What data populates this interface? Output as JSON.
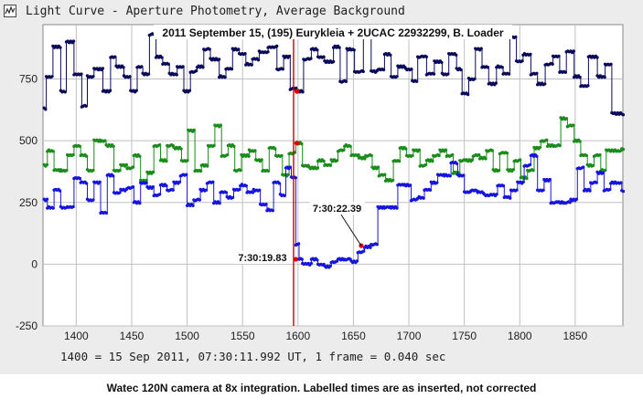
{
  "window": {
    "title": "Light Curve - Aperture Photometry, Average Background",
    "icon": "light-curve-app-icon"
  },
  "footer": {
    "frame_note": "1400 = 15 Sep 2011, 07:30:11.992 UT, 1 frame = 0.040 sec",
    "caption": "Watec 120N camera at 8x integration.   Labelled times are as inserted, not corrected"
  },
  "chart_data": {
    "type": "line",
    "title": "2011 September 15,  (195) Eurykleia + 2UCAC 22932299,  B. Loader",
    "xlabel": "",
    "ylabel": "",
    "xlim": [
      1370,
      1893
    ],
    "ylim": [
      -250,
      970
    ],
    "x_ticks": [
      1400,
      1450,
      1500,
      1550,
      1600,
      1650,
      1700,
      1750,
      1800,
      1850
    ],
    "y_ticks": [
      -250,
      0,
      250,
      500,
      750
    ],
    "grid": true,
    "legend": "none",
    "colors": {
      "background": "#ececec",
      "plot_background": "#ffffff",
      "grid": "#c0c0c0",
      "event_line": "#cc0000",
      "marker": "#dd0000"
    },
    "series": [
      {
        "color": "#0a0a5a",
        "steps": [
          [
            1371,
            630
          ],
          [
            1373,
            760
          ],
          [
            1379,
            880
          ],
          [
            1386,
            700
          ],
          [
            1391,
            900
          ],
          [
            1398,
            770
          ],
          [
            1405,
            640
          ],
          [
            1410,
            760
          ],
          [
            1416,
            790
          ],
          [
            1424,
            700
          ],
          [
            1431,
            840
          ],
          [
            1436,
            800
          ],
          [
            1443,
            760
          ],
          [
            1449,
            700
          ],
          [
            1455,
            800
          ],
          [
            1460,
            770
          ],
          [
            1466,
            930
          ],
          [
            1472,
            840
          ],
          [
            1478,
            810
          ],
          [
            1484,
            770
          ],
          [
            1491,
            800
          ],
          [
            1497,
            700
          ],
          [
            1503,
            780
          ],
          [
            1509,
            800
          ],
          [
            1515,
            870
          ],
          [
            1521,
            830
          ],
          [
            1529,
            760
          ],
          [
            1535,
            790
          ],
          [
            1541,
            870
          ],
          [
            1547,
            850
          ],
          [
            1553,
            810
          ],
          [
            1559,
            830
          ],
          [
            1565,
            860
          ],
          [
            1573,
            880
          ],
          [
            1581,
            790
          ],
          [
            1587,
            840
          ],
          [
            1593,
            710
          ],
          [
            1599,
            700
          ],
          [
            1605,
            830
          ],
          [
            1612,
            870
          ],
          [
            1618,
            840
          ],
          [
            1624,
            820
          ],
          [
            1632,
            880
          ],
          [
            1638,
            740
          ],
          [
            1644,
            870
          ],
          [
            1651,
            780
          ],
          [
            1659,
            920
          ],
          [
            1666,
            780
          ],
          [
            1672,
            790
          ],
          [
            1678,
            850
          ],
          [
            1684,
            760
          ],
          [
            1690,
            800
          ],
          [
            1697,
            790
          ],
          [
            1703,
            740
          ],
          [
            1708,
            840
          ],
          [
            1716,
            770
          ],
          [
            1723,
            820
          ],
          [
            1730,
            770
          ],
          [
            1736,
            850
          ],
          [
            1743,
            790
          ],
          [
            1748,
            690
          ],
          [
            1754,
            750
          ],
          [
            1760,
            870
          ],
          [
            1766,
            800
          ],
          [
            1772,
            730
          ],
          [
            1779,
            800
          ],
          [
            1785,
            770
          ],
          [
            1791,
            920
          ],
          [
            1797,
            820
          ],
          [
            1803,
            850
          ],
          [
            1810,
            770
          ],
          [
            1816,
            730
          ],
          [
            1823,
            810
          ],
          [
            1830,
            840
          ],
          [
            1836,
            780
          ],
          [
            1842,
            860
          ],
          [
            1849,
            760
          ],
          [
            1855,
            720
          ],
          [
            1862,
            840
          ],
          [
            1870,
            760
          ],
          [
            1877,
            810
          ],
          [
            1883,
            610
          ],
          [
            1892,
            605
          ]
        ]
      },
      {
        "color": "#1a8c1a",
        "steps": [
          [
            1371,
            400
          ],
          [
            1374,
            460
          ],
          [
            1380,
            380
          ],
          [
            1386,
            380
          ],
          [
            1392,
            440
          ],
          [
            1398,
            480
          ],
          [
            1404,
            440
          ],
          [
            1410,
            380
          ],
          [
            1416,
            500
          ],
          [
            1422,
            500
          ],
          [
            1427,
            480
          ],
          [
            1434,
            380
          ],
          [
            1440,
            400
          ],
          [
            1446,
            390
          ],
          [
            1452,
            440
          ],
          [
            1458,
            340
          ],
          [
            1464,
            370
          ],
          [
            1470,
            480
          ],
          [
            1476,
            420
          ],
          [
            1482,
            480
          ],
          [
            1488,
            470
          ],
          [
            1495,
            420
          ],
          [
            1501,
            540
          ],
          [
            1507,
            380
          ],
          [
            1513,
            400
          ],
          [
            1519,
            480
          ],
          [
            1525,
            560
          ],
          [
            1531,
            440
          ],
          [
            1537,
            480
          ],
          [
            1543,
            380
          ],
          [
            1549,
            440
          ],
          [
            1556,
            460
          ],
          [
            1562,
            420
          ],
          [
            1568,
            380
          ],
          [
            1574,
            470
          ],
          [
            1580,
            440
          ],
          [
            1586,
            360
          ],
          [
            1592,
            450
          ],
          [
            1598,
            490
          ],
          [
            1604,
            400
          ],
          [
            1610,
            390
          ],
          [
            1618,
            420
          ],
          [
            1624,
            400
          ],
          [
            1630,
            420
          ],
          [
            1636,
            460
          ],
          [
            1642,
            480
          ],
          [
            1648,
            440
          ],
          [
            1655,
            430
          ],
          [
            1661,
            440
          ],
          [
            1667,
            390
          ],
          [
            1673,
            360
          ],
          [
            1679,
            340
          ],
          [
            1686,
            420
          ],
          [
            1692,
            470
          ],
          [
            1698,
            440
          ],
          [
            1704,
            460
          ],
          [
            1710,
            400
          ],
          [
            1716,
            420
          ],
          [
            1722,
            440
          ],
          [
            1728,
            460
          ],
          [
            1734,
            440
          ],
          [
            1740,
            370
          ],
          [
            1746,
            420
          ],
          [
            1752,
            420
          ],
          [
            1758,
            440
          ],
          [
            1764,
            430
          ],
          [
            1770,
            460
          ],
          [
            1776,
            380
          ],
          [
            1782,
            450
          ],
          [
            1789,
            380
          ],
          [
            1795,
            420
          ],
          [
            1801,
            350
          ],
          [
            1807,
            380
          ],
          [
            1813,
            470
          ],
          [
            1819,
            500
          ],
          [
            1825,
            480
          ],
          [
            1831,
            480
          ],
          [
            1837,
            590
          ],
          [
            1843,
            560
          ],
          [
            1849,
            500
          ],
          [
            1855,
            440
          ],
          [
            1861,
            400
          ],
          [
            1867,
            440
          ],
          [
            1873,
            380
          ],
          [
            1878,
            460
          ],
          [
            1892,
            465
          ]
        ]
      },
      {
        "color": "#1515dd",
        "steps": [
          [
            1371,
            260
          ],
          [
            1374,
            230
          ],
          [
            1380,
            300
          ],
          [
            1386,
            230
          ],
          [
            1392,
            230
          ],
          [
            1398,
            350
          ],
          [
            1404,
            330
          ],
          [
            1410,
            260
          ],
          [
            1416,
            330
          ],
          [
            1422,
            210
          ],
          [
            1428,
            360
          ],
          [
            1434,
            290
          ],
          [
            1440,
            300
          ],
          [
            1446,
            310
          ],
          [
            1452,
            250
          ],
          [
            1458,
            330
          ],
          [
            1464,
            310
          ],
          [
            1470,
            280
          ],
          [
            1476,
            320
          ],
          [
            1482,
            300
          ],
          [
            1488,
            330
          ],
          [
            1494,
            360
          ],
          [
            1500,
            240
          ],
          [
            1506,
            260
          ],
          [
            1512,
            300
          ],
          [
            1518,
            330
          ],
          [
            1524,
            250
          ],
          [
            1530,
            290
          ],
          [
            1536,
            270
          ],
          [
            1542,
            300
          ],
          [
            1548,
            320
          ],
          [
            1554,
            290
          ],
          [
            1560,
            300
          ],
          [
            1566,
            240
          ],
          [
            1572,
            220
          ],
          [
            1578,
            330
          ],
          [
            1584,
            280
          ],
          [
            1589,
            390
          ],
          [
            1594,
            350
          ],
          [
            1598,
            80
          ],
          [
            1601,
            20
          ],
          [
            1604,
            0
          ],
          [
            1612,
            20
          ],
          [
            1618,
            0
          ],
          [
            1624,
            -10
          ],
          [
            1630,
            10
          ],
          [
            1636,
            20
          ],
          [
            1642,
            20
          ],
          [
            1648,
            10
          ],
          [
            1654,
            50
          ],
          [
            1660,
            70
          ],
          [
            1666,
            80
          ],
          [
            1672,
            230
          ],
          [
            1678,
            230
          ],
          [
            1684,
            230
          ],
          [
            1690,
            320
          ],
          [
            1696,
            320
          ],
          [
            1702,
            260
          ],
          [
            1708,
            270
          ],
          [
            1714,
            300
          ],
          [
            1720,
            330
          ],
          [
            1726,
            360
          ],
          [
            1732,
            360
          ],
          [
            1738,
            410
          ],
          [
            1744,
            360
          ],
          [
            1750,
            290
          ],
          [
            1756,
            300
          ],
          [
            1762,
            290
          ],
          [
            1768,
            280
          ],
          [
            1774,
            280
          ],
          [
            1780,
            320
          ],
          [
            1786,
            270
          ],
          [
            1792,
            300
          ],
          [
            1798,
            330
          ],
          [
            1804,
            400
          ],
          [
            1810,
            440
          ],
          [
            1816,
            300
          ],
          [
            1822,
            340
          ],
          [
            1828,
            250
          ],
          [
            1834,
            250
          ],
          [
            1840,
            250
          ],
          [
            1846,
            260
          ],
          [
            1852,
            390
          ],
          [
            1858,
            300
          ],
          [
            1864,
            330
          ],
          [
            1870,
            370
          ],
          [
            1876,
            300
          ],
          [
            1882,
            330
          ],
          [
            1892,
            295
          ]
        ]
      }
    ],
    "event_line_x": 1596,
    "markers": [
      {
        "x": 1599,
        "y": 700
      },
      {
        "x": 1599,
        "y": 490
      },
      {
        "x": 1598,
        "y": 20
      },
      {
        "x": 1657,
        "y": 75
      }
    ],
    "annotations": [
      {
        "text": "7:30:19.83",
        "x": 1598,
        "y": 20
      },
      {
        "text": "7:30:22.39",
        "x": 1657,
        "y": 75
      }
    ]
  }
}
